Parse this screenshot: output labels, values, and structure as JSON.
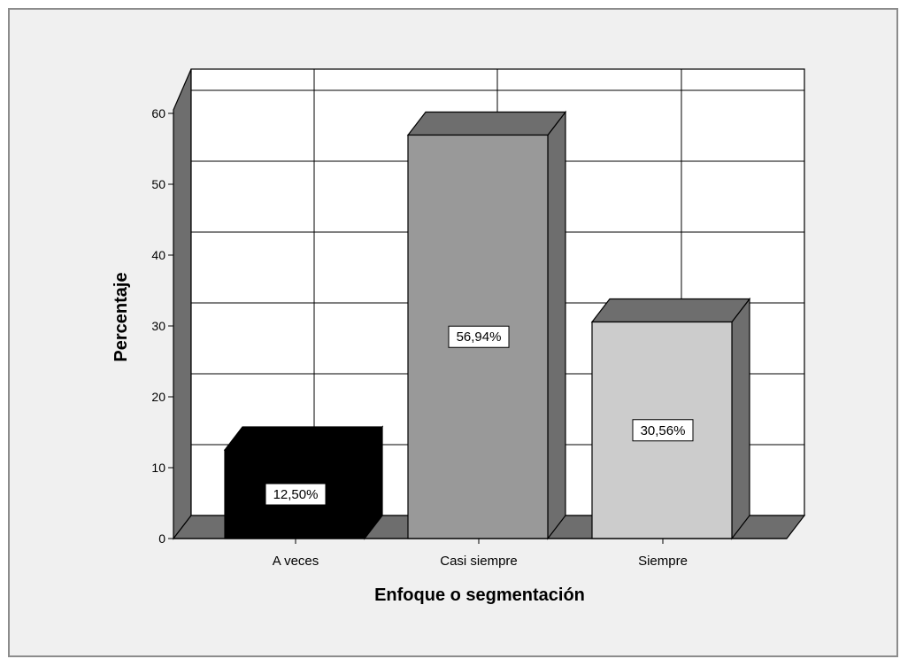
{
  "chart_data": {
    "type": "bar",
    "style": "3d",
    "categories": [
      "A veces",
      "Casi siempre",
      "Siempre"
    ],
    "values": [
      12.5,
      56.94,
      30.56
    ],
    "data_labels": [
      "12,50%",
      "56,94%",
      "30,56%"
    ],
    "bar_colors": [
      "#000000",
      "#999999",
      "#cccccc"
    ],
    "xlabel": "Enfoque o segmentación",
    "ylabel": "Percentaje",
    "ylim": [
      0,
      60
    ],
    "yticks": [
      0,
      10,
      20,
      30,
      40,
      50,
      60
    ],
    "ytick_labels": [
      "0",
      "10",
      "20",
      "30",
      "40",
      "50",
      "60"
    ],
    "grid": true,
    "colors": {
      "background": "#f0f0f0",
      "plot_area": "#ffffff",
      "wall_side": "#6e6e6e",
      "floor": "#6e6e6e"
    }
  }
}
